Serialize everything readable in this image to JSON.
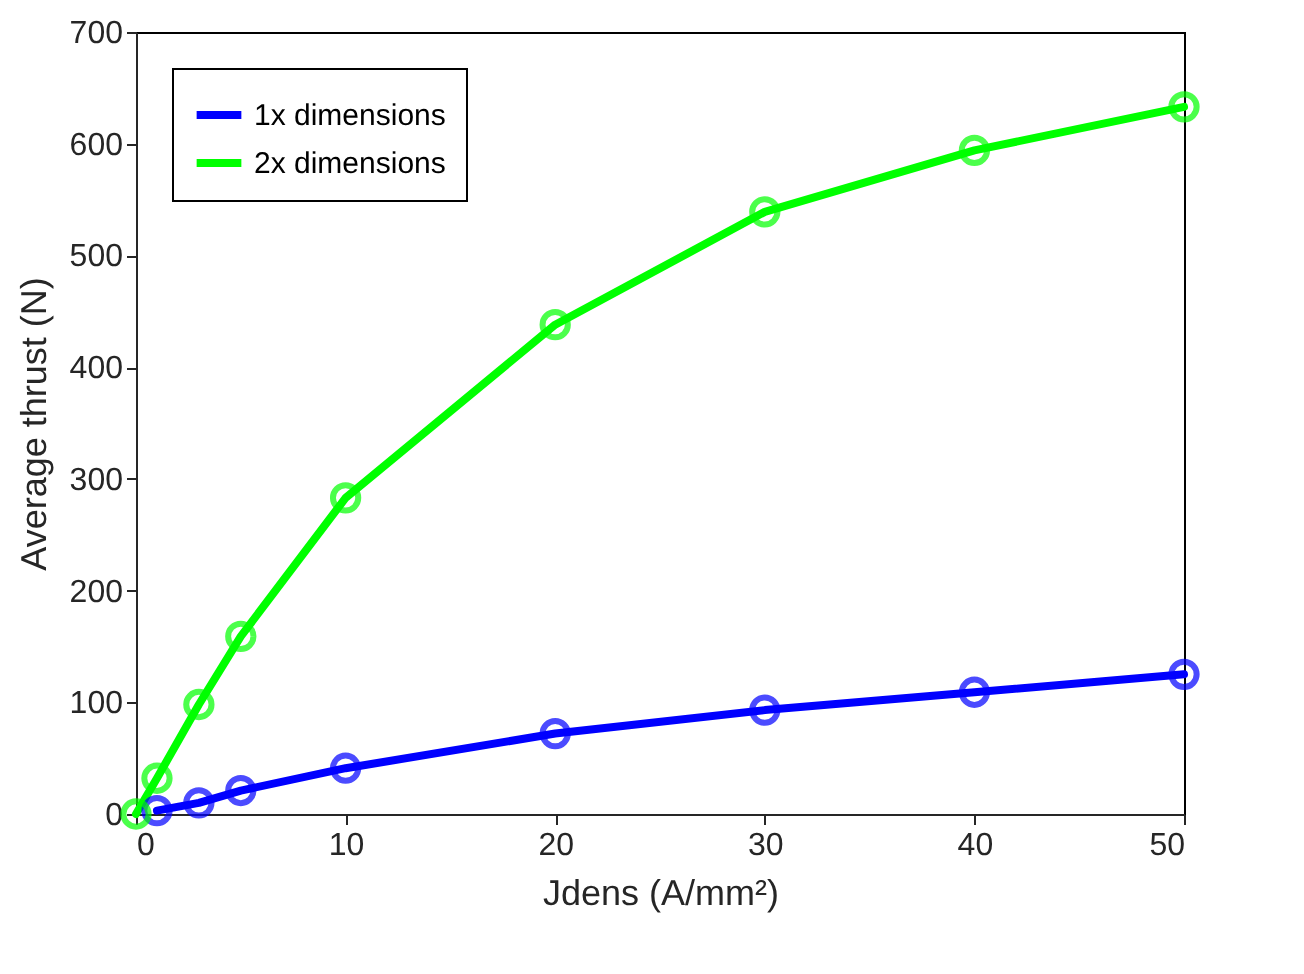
{
  "chart_data": {
    "type": "line",
    "xlabel": "Jdens (A/mm²)",
    "ylabel": "Average thrust (N)",
    "xlim": [
      0,
      50
    ],
    "xticks": [
      0,
      10,
      20,
      30,
      40,
      50
    ],
    "ylim": [
      0,
      700
    ],
    "yticks": [
      0,
      100,
      200,
      300,
      400,
      500,
      600,
      700
    ],
    "grid": false,
    "legend": "top left",
    "marker": "circle",
    "line_style": "solid",
    "series": [
      {
        "name": "1x dimensions",
        "color": "#0000ff",
        "x": [
          1,
          3,
          5,
          10,
          20,
          30,
          40,
          50
        ],
        "values": [
          3,
          10,
          21,
          41,
          72,
          93,
          109,
          125
        ]
      },
      {
        "name": "2x dimensions",
        "color": "#00ff00",
        "x": [
          0,
          1,
          3,
          5,
          10,
          20,
          30,
          40,
          50
        ],
        "values": [
          0,
          32,
          98,
          159,
          283,
          438,
          539,
          594,
          633
        ]
      }
    ]
  }
}
